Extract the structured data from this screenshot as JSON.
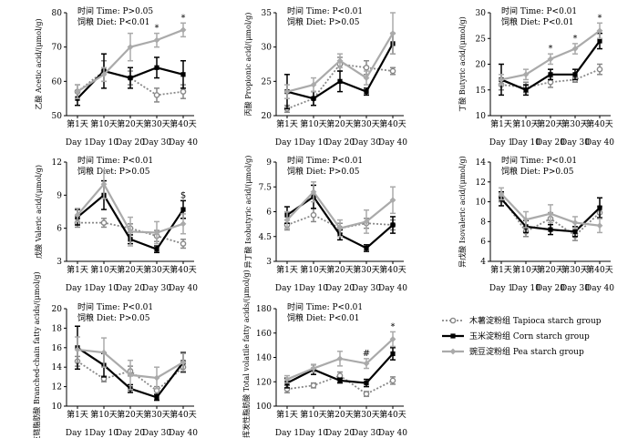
{
  "chart_data": [
    {
      "type": "line",
      "ylabel": "乙酸 Acetic acid/(μmol/g)",
      "ylim": [
        50,
        80
      ],
      "yticks": [
        50,
        60,
        70,
        80
      ],
      "categories": [
        "第1天",
        "第10天",
        "第20天",
        "第30天",
        "第40天"
      ],
      "categories_en": [
        "Day 1",
        "Day 10",
        "Day 20",
        "Day 30",
        "Day 40"
      ],
      "annotation": {
        "time_line": "时间 Time: P>0.05",
        "diet_line": "饲粮 Diet: P<0.01"
      },
      "significance": [
        {
          "day": "第30天",
          "mark": "*"
        },
        {
          "day": "第40天",
          "mark": "*"
        }
      ],
      "series": [
        {
          "name": "木薯淀粉组 Tapioca starch group",
          "values": [
            57,
            63,
            61,
            56,
            57
          ],
          "err": [
            2,
            3,
            2,
            2,
            2
          ]
        },
        {
          "name": "玉米淀粉组 Corn starch group",
          "values": [
            55,
            63,
            61,
            64,
            62
          ],
          "err": [
            2,
            5,
            3,
            3,
            4
          ]
        },
        {
          "name": "豌豆淀粉组 Pea starch group",
          "values": [
            57,
            62,
            70,
            72,
            75
          ],
          "err": [
            2,
            2,
            4,
            2,
            2
          ]
        }
      ]
    },
    {
      "type": "line",
      "ylabel": "丙酸 Propionic acid/(μmol/g)",
      "ylim": [
        20,
        35
      ],
      "yticks": [
        20,
        25,
        30,
        35
      ],
      "categories": [
        "第1天",
        "第10天",
        "第20天",
        "第30天",
        "第40天"
      ],
      "categories_en": [
        "Day 1",
        "Day 10",
        "Day 20",
        "Day 30",
        "Day 40"
      ],
      "annotation": {
        "time_line": "时间 Time: P<0.01",
        "diet_line": "饲粮 Diet: P>0.05"
      },
      "significance": [],
      "series": [
        {
          "name": "木薯淀粉组 Tapioca starch group",
          "values": [
            21,
            22.5,
            27.5,
            27,
            26.5
          ],
          "err": [
            0.5,
            1,
            1,
            1,
            0.5
          ]
        },
        {
          "name": "玉米淀粉组 Corn starch group",
          "values": [
            23.5,
            22.5,
            25,
            23.5,
            30.5
          ],
          "err": [
            2.5,
            1,
            1.5,
            0.5,
            1.5
          ]
        },
        {
          "name": "豌豆淀粉组 Pea starch group",
          "values": [
            23.5,
            24.5,
            28,
            25.5,
            32
          ],
          "err": [
            1,
            1,
            1,
            1,
            3
          ]
        }
      ]
    },
    {
      "type": "line",
      "ylabel": "丁酸 Butyric acid/(μmol/g)",
      "ylim": [
        10,
        30
      ],
      "yticks": [
        10,
        15,
        20,
        25,
        30
      ],
      "categories": [
        "第1天",
        "第10天",
        "第20天",
        "第30天",
        "第40天"
      ],
      "categories_en": [
        "Day 1",
        "Day 10",
        "Day 20",
        "Day 30",
        "Day 40"
      ],
      "annotation": {
        "time_line": "时间 Time: P<0.01",
        "diet_line": "饲粮 Diet: P<0.01"
      },
      "significance": [
        {
          "day": "第20天",
          "mark": "*"
        },
        {
          "day": "第30天",
          "mark": "*"
        },
        {
          "day": "第40天",
          "mark": "*"
        }
      ],
      "series": [
        {
          "name": "木薯淀粉组 Tapioca starch group",
          "values": [
            16,
            15.5,
            16.5,
            17,
            19
          ],
          "err": [
            1,
            1,
            1,
            0.5,
            1
          ]
        },
        {
          "name": "玉米淀粉组 Corn starch group",
          "values": [
            17,
            15,
            18,
            18,
            24.5
          ],
          "err": [
            3,
            1,
            1,
            1,
            1.5
          ]
        },
        {
          "name": "豌豆淀粉组 Pea starch group",
          "values": [
            17,
            18,
            21,
            23,
            26.5
          ],
          "err": [
            1,
            1,
            1,
            1,
            1.5
          ]
        }
      ]
    },
    {
      "type": "line",
      "ylabel": "戊酸 Valeric acid/(μmol/g)",
      "ylim": [
        3,
        12
      ],
      "yticks": [
        3,
        6,
        9,
        12
      ],
      "categories": [
        "第1天",
        "第10天",
        "第20天",
        "第30天",
        "第40天"
      ],
      "categories_en": [
        "Day 1",
        "Day 10",
        "Day 20",
        "Day 30",
        "Day 40"
      ],
      "annotation": {
        "time_line": "时间 Time: P<0.01",
        "diet_line": "饲粮 Diet: P>0.05"
      },
      "significance": [
        {
          "day": "第40天",
          "mark": "$"
        }
      ],
      "series": [
        {
          "name": "木薯淀粉组 Tapioca starch group",
          "values": [
            6.5,
            6.5,
            6.0,
            5.3,
            4.6
          ],
          "err": [
            0.4,
            0.4,
            0.4,
            0.5,
            0.4
          ]
        },
        {
          "name": "玉米淀粉组 Corn starch group",
          "values": [
            7.0,
            9.0,
            5.0,
            4.1,
            7.7
          ],
          "err": [
            0.7,
            1.3,
            0.4,
            0.3,
            0.8
          ]
        },
        {
          "name": "豌豆淀粉组 Pea starch group",
          "values": [
            7.2,
            10.0,
            5.7,
            5.6,
            6.4
          ],
          "err": [
            0.6,
            1.3,
            1.3,
            1.0,
            0.9
          ]
        }
      ]
    },
    {
      "type": "line",
      "ylabel": "异丁酸 Isobutyric acid/(μmol/g)",
      "ylim": [
        3.0,
        9.0
      ],
      "yticks": [
        3.0,
        4.5,
        6.0,
        7.5,
        9.0
      ],
      "categories": [
        "第1天",
        "第10天",
        "第20天",
        "第30天",
        "第40天"
      ],
      "categories_en": [
        "Day 1",
        "Day 10",
        "Day 20",
        "Day 30",
        "Day 40"
      ],
      "annotation": {
        "time_line": "时间 Time: P<0.01",
        "diet_line": "饲粮 Diet: P>0.05"
      },
      "significance": [],
      "series": [
        {
          "name": "木薯淀粉组 Tapioca starch group",
          "values": [
            5.2,
            5.8,
            5.0,
            5.3,
            5.2
          ],
          "err": [
            0.3,
            0.4,
            0.3,
            0.3,
            0.3
          ]
        },
        {
          "name": "玉米淀粉组 Corn starch group",
          "values": [
            5.8,
            6.9,
            4.6,
            3.8,
            5.2
          ],
          "err": [
            0.5,
            0.7,
            0.3,
            0.2,
            0.5
          ]
        },
        {
          "name": "豌豆淀粉组 Pea starch group",
          "values": [
            5.5,
            7.2,
            5.0,
            5.4,
            6.7
          ],
          "err": [
            0.5,
            0.6,
            0.5,
            0.7,
            0.8
          ]
        }
      ]
    },
    {
      "type": "line",
      "ylabel": "异戊酸 Isovaleric acid/(μmol/g)",
      "ylim": [
        4,
        14
      ],
      "yticks": [
        4,
        6,
        8,
        10,
        12,
        14
      ],
      "categories": [
        "第1天",
        "第10天",
        "第20天",
        "第30天",
        "第40天"
      ],
      "categories_en": [
        "Day 1",
        "Day 10",
        "Day 20",
        "Day 30",
        "Day 40"
      ],
      "annotation": {
        "time_line": "时间 Time: P<0.01",
        "diet_line": "饲粮 Diet: P>0.05"
      },
      "significance": [],
      "series": [
        {
          "name": "木薯淀粉组 Tapioca starch group",
          "values": [
            10.5,
            7.0,
            8.3,
            6.6,
            8.9
          ],
          "err": [
            0.5,
            0.5,
            0.6,
            0.5,
            0.6
          ]
        },
        {
          "name": "玉米淀粉组 Corn starch group",
          "values": [
            10.3,
            7.5,
            7.2,
            7.0,
            9.4
          ],
          "err": [
            0.7,
            0.6,
            0.5,
            0.5,
            1.0
          ]
        },
        {
          "name": "豌豆淀粉组 Pea starch group",
          "values": [
            10.8,
            8.2,
            8.8,
            7.9,
            7.6
          ],
          "err": [
            0.6,
            0.8,
            0.9,
            0.6,
            0.7
          ]
        }
      ]
    },
    {
      "type": "line",
      "ylabel": "支链脂肪酸 Branched-chain fatty acids/(μmol/g)",
      "ylim": [
        10,
        20
      ],
      "yticks": [
        10,
        12,
        14,
        16,
        18,
        20
      ],
      "categories": [
        "第1天",
        "第10天",
        "第20天",
        "第30天",
        "第40天"
      ],
      "categories_en": [
        "Day 1",
        "Day 10",
        "Day 20",
        "Day 30",
        "Day 40"
      ],
      "annotation": {
        "time_line": "时间 Time: P<0.01",
        "diet_line": "饲粮 Diet: P>0.05"
      },
      "significance": [],
      "series": [
        {
          "name": "木薯淀粉组 Tapioca starch group",
          "values": [
            14.6,
            12.8,
            13.6,
            11.6,
            14.0
          ],
          "err": [
            0.5,
            0.3,
            0.5,
            0.4,
            0.5
          ]
        },
        {
          "name": "玉米淀粉组 Corn starch group",
          "values": [
            16.0,
            14.2,
            11.8,
            10.9,
            14.5
          ],
          "err": [
            2.2,
            1.2,
            0.4,
            0.3,
            1.0
          ]
        },
        {
          "name": "豌豆淀粉组 Pea starch group",
          "values": [
            15.8,
            15.5,
            13.2,
            12.9,
            14.5
          ],
          "err": [
            1.3,
            1.5,
            1.5,
            1.1,
            0.9
          ]
        }
      ]
    },
    {
      "type": "line",
      "ylabel": "总挥发性脂肪酸 Total volatile fatty acids/(μmol/g)",
      "ylim": [
        100,
        180
      ],
      "yticks": [
        100,
        120,
        140,
        160,
        180
      ],
      "categories": [
        "第1天",
        "第10天",
        "第20天",
        "第30天",
        "第40天"
      ],
      "categories_en": [
        "Day 1",
        "Day 10",
        "Day 20",
        "Day 30",
        "Day 40"
      ],
      "annotation": {
        "time_line": "时间 Time: P<0.01",
        "diet_line": "饲粮 Diet: P<0.01"
      },
      "significance": [
        {
          "day": "第30天",
          "mark": "#"
        },
        {
          "day": "第40天",
          "mark": "*"
        }
      ],
      "series": [
        {
          "name": "木薯淀粉组 Tapioca starch group",
          "values": [
            114,
            117,
            125,
            110,
            121
          ],
          "err": [
            3,
            2,
            3,
            2,
            3
          ]
        },
        {
          "name": "玉米淀粉组 Corn starch group",
          "values": [
            119,
            130,
            121,
            119,
            143
          ],
          "err": [
            4,
            4,
            2,
            3,
            5
          ]
        },
        {
          "name": "豌豆淀粉组 Pea starch group",
          "values": [
            122,
            131,
            139,
            135,
            155
          ],
          "err": [
            3,
            3,
            6,
            4,
            6
          ]
        }
      ]
    }
  ],
  "legend": {
    "items": [
      {
        "label": "木薯淀粉组 Tapioca starch group",
        "color": "#888888",
        "style": "dotted",
        "marker": "open-circle"
      },
      {
        "label": "玉米淀粉组 Corn starch group",
        "color": "#000000",
        "style": "solid",
        "marker": "filled-square"
      },
      {
        "label": "豌豆淀粉组 Pea starch group",
        "color": "#aaaaaa",
        "style": "solid",
        "marker": "filled-diamond"
      }
    ]
  }
}
